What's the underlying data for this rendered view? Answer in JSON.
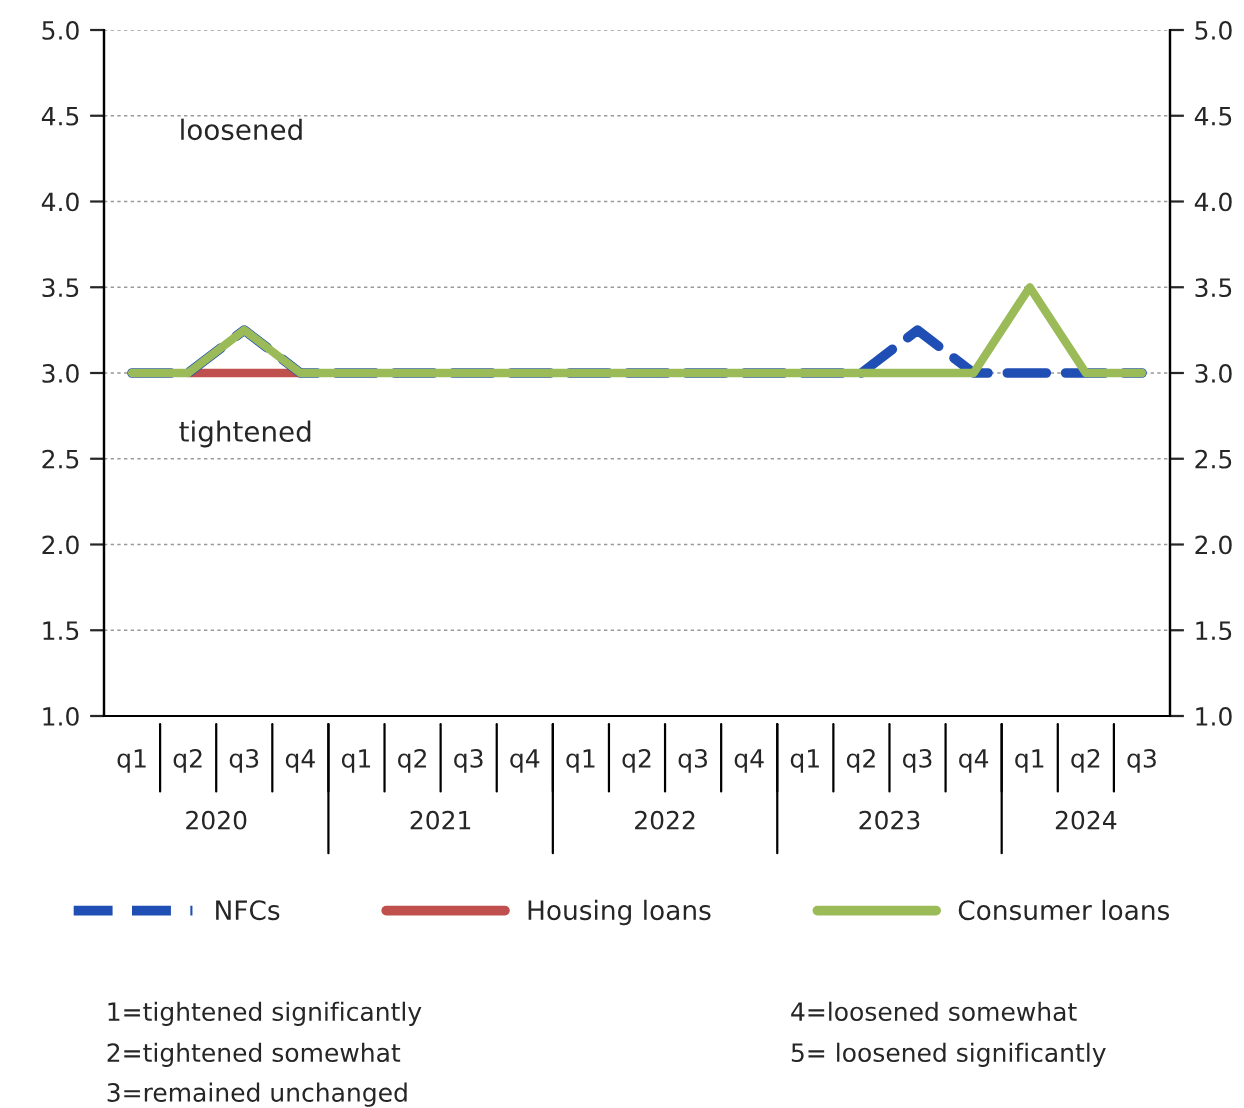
{
  "chart_data": {
    "type": "line",
    "categories": [
      "q1",
      "q2",
      "q3",
      "q4",
      "q1",
      "q2",
      "q3",
      "q4",
      "q1",
      "q2",
      "q3",
      "q4",
      "q1",
      "q2",
      "q3",
      "q4",
      "q1",
      "q2",
      "q3"
    ],
    "series": [
      {
        "name": "NFCs",
        "color": "#1f4eb4",
        "line_style": "dashed",
        "values": [
          3,
          3,
          3.25,
          3,
          3,
          3,
          3,
          3,
          3,
          3,
          3,
          3,
          3,
          3,
          3.25,
          3,
          3,
          3,
          3
        ]
      },
      {
        "name": "Housing loans",
        "color": "#c0504d",
        "line_style": "solid",
        "values": [
          null,
          3,
          3,
          3,
          null,
          null,
          null,
          null,
          null,
          null,
          null,
          null,
          null,
          null,
          null,
          null,
          null,
          null,
          null
        ]
      },
      {
        "name": "Consumer loans",
        "color": "#9bbb59",
        "line_style": "solid",
        "values": [
          3,
          3,
          3.25,
          3,
          3,
          3,
          3,
          3,
          3,
          3,
          3,
          3,
          3,
          3,
          3,
          3,
          3.5,
          3,
          3
        ]
      }
    ],
    "ylim": [
      1.0,
      5.0
    ],
    "yticks": [
      {
        "value": 1.0,
        "label": "1.0"
      },
      {
        "value": 1.5,
        "label": "1.5"
      },
      {
        "value": 2.0,
        "label": "2.0"
      },
      {
        "value": 2.5,
        "label": "2.5"
      },
      {
        "value": 3.0,
        "label": "3.0"
      },
      {
        "value": 3.5,
        "label": "3.5"
      },
      {
        "value": 4.0,
        "label": "4.0"
      },
      {
        "value": 4.5,
        "label": "4.5"
      },
      {
        "value": 5.0,
        "label": "5.0"
      }
    ],
    "y2lim": [
      1.0,
      5.0
    ],
    "y2ticks": [
      {
        "value": 1.0,
        "label": "1.0"
      },
      {
        "value": 1.5,
        "label": "1.5"
      },
      {
        "value": 2.0,
        "label": "2.0"
      },
      {
        "value": 2.5,
        "label": "2.5"
      },
      {
        "value": 3.0,
        "label": "3.0"
      },
      {
        "value": 3.5,
        "label": "3.5"
      },
      {
        "value": 4.0,
        "label": "4.0"
      },
      {
        "value": 4.5,
        "label": "4.5"
      },
      {
        "value": 5.0,
        "label": "5.0"
      }
    ],
    "grid": "y",
    "legend": "bottom",
    "marker": "none",
    "annotations": [
      "loosened",
      "tightened",
      "2020",
      "2021",
      "2022",
      "2023",
      "2024",
      "1=tightened significantly",
      "2=tightened somewhat",
      "3=remained unchanged",
      "4=loosened somewhat",
      "5= loosened significantly"
    ]
  }
}
